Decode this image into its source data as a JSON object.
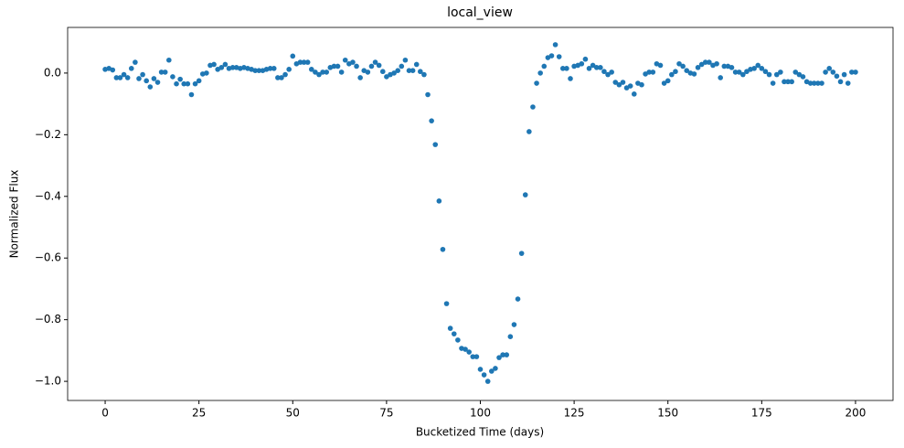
{
  "chart_data": {
    "type": "scatter",
    "title": "local_view",
    "xlabel": "Bucketized Time (days)",
    "ylabel": "Normalized Flux",
    "color": "#1f77b4",
    "xlim": [
      -10,
      210
    ],
    "ylim": [
      -1.062,
      0.148
    ],
    "xticks": [
      0,
      25,
      50,
      75,
      100,
      125,
      150,
      175,
      200
    ],
    "yticks": [
      {
        "value": -1.0,
        "label": "−1.0"
      },
      {
        "value": -0.8,
        "label": "−0.8"
      },
      {
        "value": -0.6,
        "label": "−0.6"
      },
      {
        "value": -0.4,
        "label": "−0.4"
      },
      {
        "value": -0.2,
        "label": "−0.2"
      },
      {
        "value": 0.0,
        "label": "0.0"
      }
    ],
    "x": [
      0,
      1,
      2,
      3,
      4,
      5,
      6,
      7,
      8,
      9,
      10,
      11,
      12,
      13,
      14,
      15,
      16,
      17,
      18,
      19,
      20,
      21,
      22,
      23,
      24,
      25,
      26,
      27,
      28,
      29,
      30,
      31,
      32,
      33,
      34,
      35,
      36,
      37,
      38,
      39,
      40,
      41,
      42,
      43,
      44,
      45,
      46,
      47,
      48,
      49,
      50,
      51,
      52,
      53,
      54,
      55,
      56,
      57,
      58,
      59,
      60,
      61,
      62,
      63,
      64,
      65,
      66,
      67,
      68,
      69,
      70,
      71,
      72,
      73,
      74,
      75,
      76,
      77,
      78,
      79,
      80,
      81,
      82,
      83,
      84,
      85,
      86,
      87,
      88,
      89,
      90,
      91,
      92,
      93,
      94,
      95,
      96,
      97,
      98,
      99,
      100,
      101,
      102,
      103,
      104,
      105,
      106,
      107,
      108,
      109,
      110,
      111,
      112,
      113,
      114,
      115,
      116,
      117,
      118,
      119,
      120,
      121,
      122,
      123,
      124,
      125,
      126,
      127,
      128,
      129,
      130,
      131,
      132,
      133,
      134,
      135,
      136,
      137,
      138,
      139,
      140,
      141,
      142,
      143,
      144,
      145,
      146,
      147,
      148,
      149,
      150,
      151,
      152,
      153,
      154,
      155,
      156,
      157,
      158,
      159,
      160,
      161,
      162,
      163,
      164,
      165,
      166,
      167,
      168,
      169,
      170,
      171,
      172,
      173,
      174,
      175,
      176,
      177,
      178,
      179,
      180,
      181,
      182,
      183,
      184,
      185,
      186,
      187,
      188,
      189,
      190,
      191,
      192,
      193,
      194,
      195,
      196,
      197,
      198,
      199,
      200
    ],
    "values": [
      0.012,
      0.015,
      0.01,
      -0.015,
      -0.015,
      -0.005,
      -0.015,
      0.015,
      0.035,
      -0.018,
      -0.005,
      -0.025,
      -0.045,
      -0.018,
      -0.03,
      0.003,
      0.003,
      0.042,
      -0.012,
      -0.035,
      -0.02,
      -0.035,
      -0.035,
      -0.07,
      -0.035,
      -0.025,
      -0.003,
      0.0,
      0.025,
      0.028,
      0.012,
      0.018,
      0.028,
      0.015,
      0.018,
      0.018,
      0.015,
      0.018,
      0.015,
      0.012,
      0.008,
      0.008,
      0.008,
      0.012,
      0.015,
      0.015,
      -0.015,
      -0.015,
      -0.005,
      0.012,
      0.055,
      0.03,
      0.035,
      0.035,
      0.035,
      0.012,
      0.003,
      -0.005,
      0.003,
      0.003,
      0.018,
      0.022,
      0.022,
      0.003,
      0.042,
      0.03,
      0.035,
      0.022,
      -0.015,
      0.008,
      0.003,
      0.022,
      0.035,
      0.025,
      0.005,
      -0.012,
      -0.005,
      0.0,
      0.008,
      0.022,
      0.042,
      0.008,
      0.008,
      0.028,
      0.005,
      -0.005,
      -0.07,
      -0.155,
      -0.232,
      -0.415,
      -0.572,
      -0.748,
      -0.828,
      -0.846,
      -0.866,
      -0.893,
      -0.896,
      -0.905,
      -0.92,
      -0.92,
      -0.961,
      -0.979,
      -1.0,
      -0.967,
      -0.958,
      -0.923,
      -0.914,
      -0.914,
      -0.855,
      -0.816,
      -0.733,
      -0.585,
      -0.395,
      -0.19,
      -0.11,
      -0.033,
      0.0,
      0.022,
      0.05,
      0.056,
      0.092,
      0.053,
      0.015,
      0.015,
      -0.018,
      0.022,
      0.025,
      0.03,
      0.045,
      0.015,
      0.025,
      0.018,
      0.018,
      0.005,
      -0.005,
      0.003,
      -0.03,
      -0.038,
      -0.03,
      -0.048,
      -0.042,
      -0.068,
      -0.033,
      -0.038,
      -0.003,
      0.003,
      0.003,
      0.03,
      0.025,
      -0.033,
      -0.025,
      -0.005,
      0.005,
      0.03,
      0.022,
      0.008,
      0.0,
      -0.003,
      0.018,
      0.028,
      0.035,
      0.035,
      0.025,
      0.03,
      -0.015,
      0.022,
      0.022,
      0.018,
      0.003,
      0.003,
      -0.005,
      0.005,
      0.012,
      0.015,
      0.025,
      0.015,
      0.005,
      -0.005,
      -0.033,
      -0.005,
      0.003,
      -0.028,
      -0.028,
      -0.028,
      0.003,
      -0.005,
      -0.012,
      -0.028,
      -0.033,
      -0.033,
      -0.033,
      -0.033,
      0.003,
      0.015,
      0.003,
      -0.01,
      -0.028,
      -0.005,
      -0.033,
      0.003,
      0.003
    ]
  }
}
